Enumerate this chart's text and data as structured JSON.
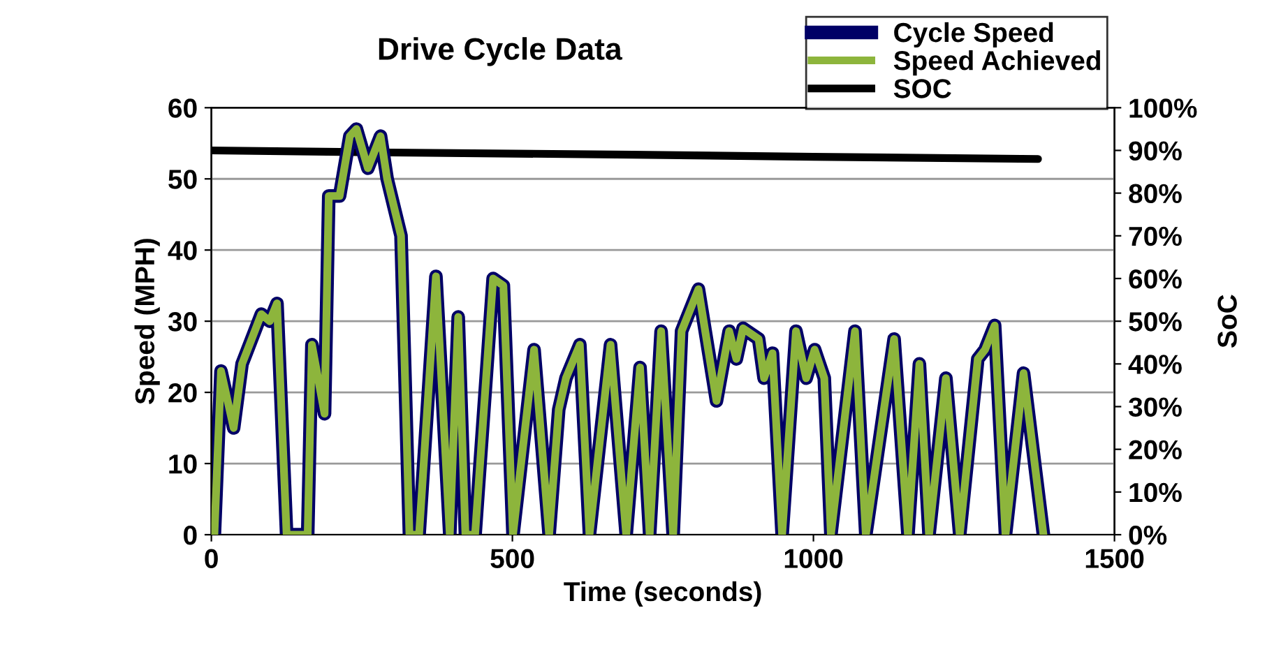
{
  "chart_data": {
    "type": "line",
    "title": "Drive Cycle Data",
    "xlabel": "Time (seconds)",
    "ylabel": "Speed (MPH)",
    "y2label": "SoC",
    "x": [
      0,
      5,
      16,
      37,
      51,
      83,
      97,
      109,
      125,
      160,
      167,
      188,
      195,
      213,
      230,
      241,
      260,
      281,
      292,
      315,
      329,
      345,
      373,
      396,
      410,
      422,
      438,
      468,
      485,
      501,
      536,
      561,
      577,
      589,
      612,
      628,
      663,
      689,
      712,
      728,
      747,
      767,
      781,
      809,
      839,
      860,
      872,
      883,
      909,
      918,
      932,
      948,
      971,
      988,
      1002,
      1018,
      1029,
      1069,
      1087,
      1134,
      1157,
      1176,
      1192,
      1220,
      1243,
      1273,
      1285,
      1301,
      1319,
      1349,
      1382
    ],
    "series": [
      {
        "name": "Cycle Speed",
        "color": "#000066",
        "values": [
          0,
          0,
          23,
          15,
          24,
          31,
          30,
          32.5,
          0,
          0,
          26.7,
          17,
          47.6,
          47.6,
          56,
          57,
          51.5,
          56,
          50,
          42,
          0,
          0,
          36.3,
          0,
          30.6,
          0,
          0,
          36,
          35,
          0,
          26,
          0,
          17.6,
          22,
          26.7,
          0,
          26.7,
          0,
          23.5,
          0,
          28.6,
          0,
          28.6,
          34.5,
          18.8,
          28.6,
          24.7,
          29,
          27.5,
          22,
          25.5,
          0,
          28.6,
          22,
          26,
          22,
          0,
          28.6,
          0,
          27.5,
          0,
          24,
          0,
          22,
          0,
          24.7,
          26,
          29.4,
          0,
          22.7,
          0
        ]
      },
      {
        "name": "Speed Achieved",
        "color": "#8db53c",
        "values": [
          0,
          0,
          23,
          15,
          24,
          31,
          30,
          32.5,
          0,
          0,
          26.7,
          17,
          47.6,
          47.6,
          56,
          57,
          51.5,
          56,
          50,
          42,
          0,
          0,
          36.3,
          0,
          30.6,
          0,
          0,
          36,
          35,
          0,
          26,
          0,
          17.6,
          22,
          26.7,
          0,
          26.7,
          0,
          23.5,
          0,
          28.6,
          0,
          28.6,
          34.5,
          18.8,
          28.6,
          24.7,
          29,
          27.5,
          22,
          25.5,
          0,
          28.6,
          22,
          26,
          22,
          0,
          28.6,
          0,
          27.5,
          0,
          24,
          0,
          22,
          0,
          24.7,
          26,
          29.4,
          0,
          22.7,
          0
        ]
      },
      {
        "name": "SOC",
        "color": "#000000",
        "axis": "y2",
        "x": [
          0,
          300,
          700,
          1000,
          1373
        ],
        "values": [
          90,
          89.5,
          89,
          88.5,
          88
        ]
      }
    ],
    "xlim": [
      0,
      1500
    ],
    "xticks": [
      0,
      500,
      1000,
      1500
    ],
    "ylim": [
      0,
      60
    ],
    "yticks": [
      0,
      10,
      20,
      30,
      40,
      50,
      60
    ],
    "y2lim": [
      0,
      100
    ],
    "y2ticks": [
      {
        "value": 0,
        "label": "0%"
      },
      {
        "value": 10,
        "label": "10%"
      },
      {
        "value": 20,
        "label": "20%"
      },
      {
        "value": 30,
        "label": "30%"
      },
      {
        "value": 40,
        "label": "40%"
      },
      {
        "value": 50,
        "label": "50%"
      },
      {
        "value": 60,
        "label": "60%"
      },
      {
        "value": 70,
        "label": "70%"
      },
      {
        "value": 80,
        "label": "80%"
      },
      {
        "value": 90,
        "label": "90%"
      },
      {
        "value": 100,
        "label": "100%"
      }
    ],
    "grid": "y",
    "legend": "top right",
    "marker": "none",
    "line_style": "solid"
  }
}
